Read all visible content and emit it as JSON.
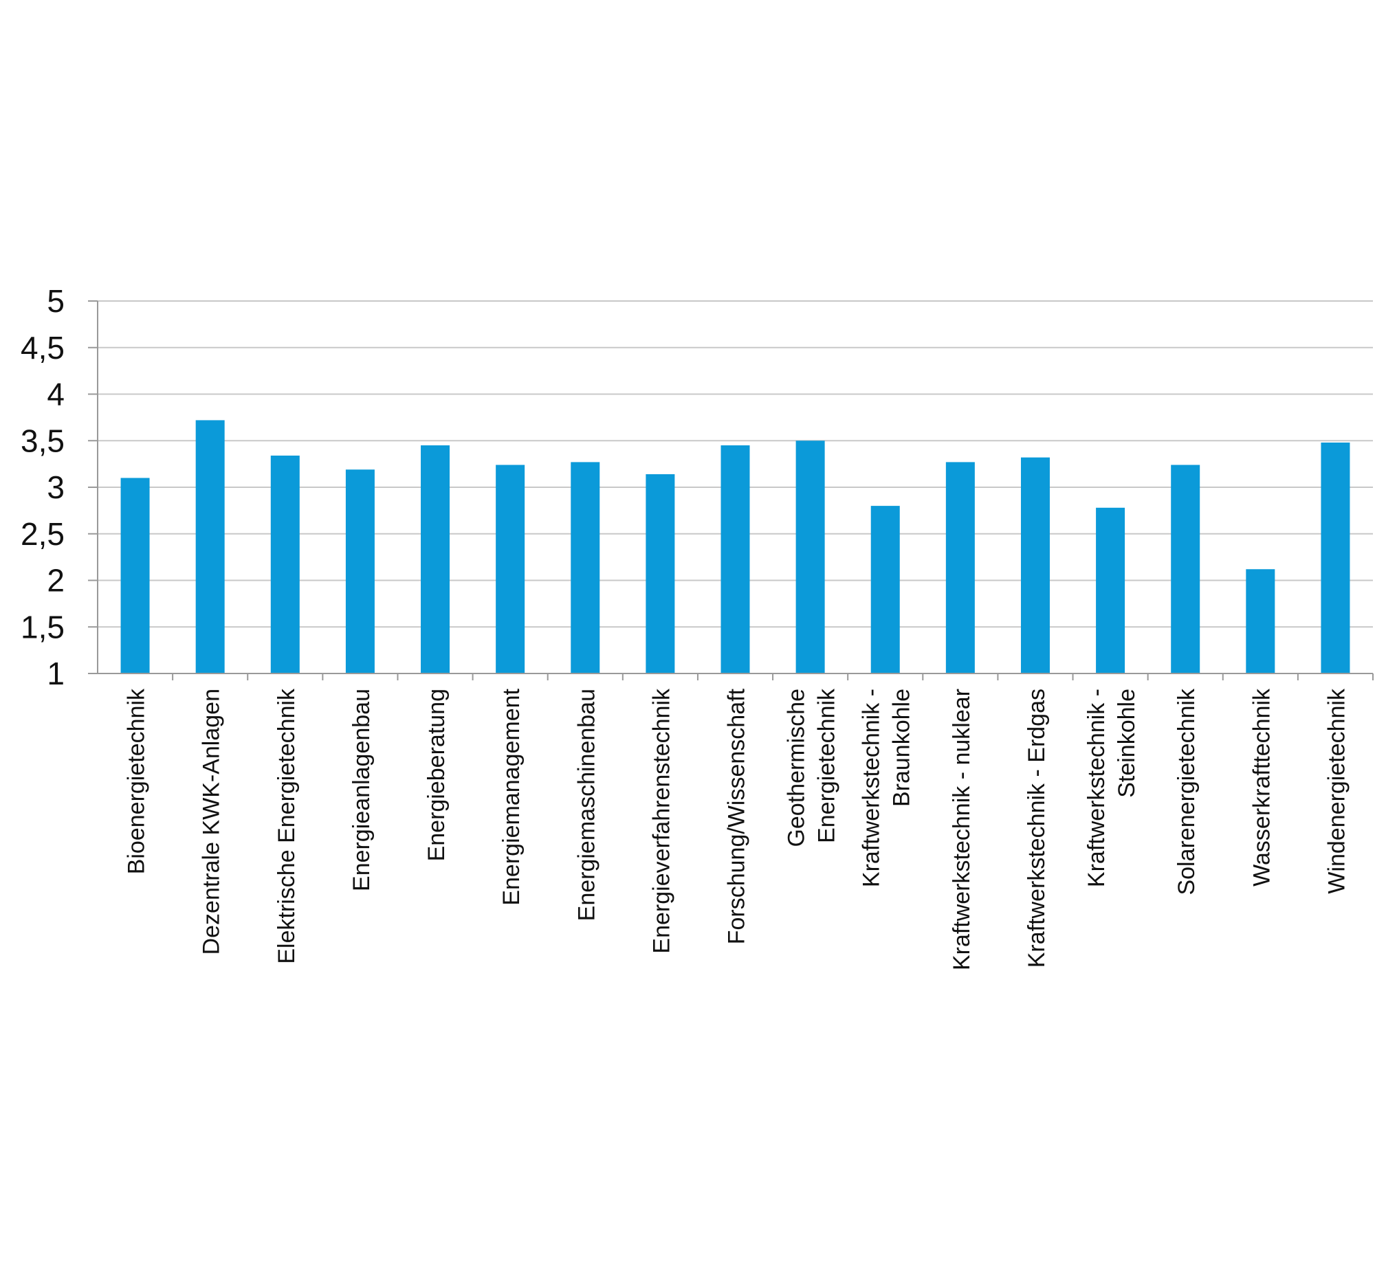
{
  "chart_data": {
    "type": "bar",
    "title": "",
    "xlabel": "",
    "ylabel": "",
    "ylim": [
      1,
      5
    ],
    "yticks": [
      "1",
      "1,5",
      "2",
      "2,5",
      "3",
      "3,5",
      "4",
      "4,5",
      "5"
    ],
    "ytick_values": [
      1,
      1.5,
      2,
      2.5,
      3,
      3.5,
      4,
      4.5,
      5
    ],
    "grid": true,
    "bar_color": "#0b9ad9",
    "categories": [
      [
        "Bioenergietechnik"
      ],
      [
        "Dezentrale KWK-Anlagen"
      ],
      [
        "Elektrische Energietechnik"
      ],
      [
        "Energieanlagenbau"
      ],
      [
        "Energieberatung"
      ],
      [
        "Energiemanagement"
      ],
      [
        "Energiemaschinenbau"
      ],
      [
        "Energieverfahrenstechnik"
      ],
      [
        "Forschung/Wissenschaft"
      ],
      [
        "Geothermische",
        "Energietechnik"
      ],
      [
        "Kraftwerkstechnik -",
        "Braunkohle"
      ],
      [
        "Kraftwerkstechnik - nuklear"
      ],
      [
        "Kraftwerkstechnik - Erdgas"
      ],
      [
        "Kraftwerkstechnik -",
        "Steinkohle"
      ],
      [
        "Solarenergietechnik"
      ],
      [
        "Wasserkrafttechnik"
      ],
      [
        "Windenergietechnik"
      ]
    ],
    "values": [
      3.1,
      3.72,
      3.34,
      3.19,
      3.45,
      3.24,
      3.27,
      3.14,
      3.45,
      3.5,
      2.8,
      3.27,
      3.32,
      2.78,
      3.24,
      2.12,
      3.48
    ]
  }
}
